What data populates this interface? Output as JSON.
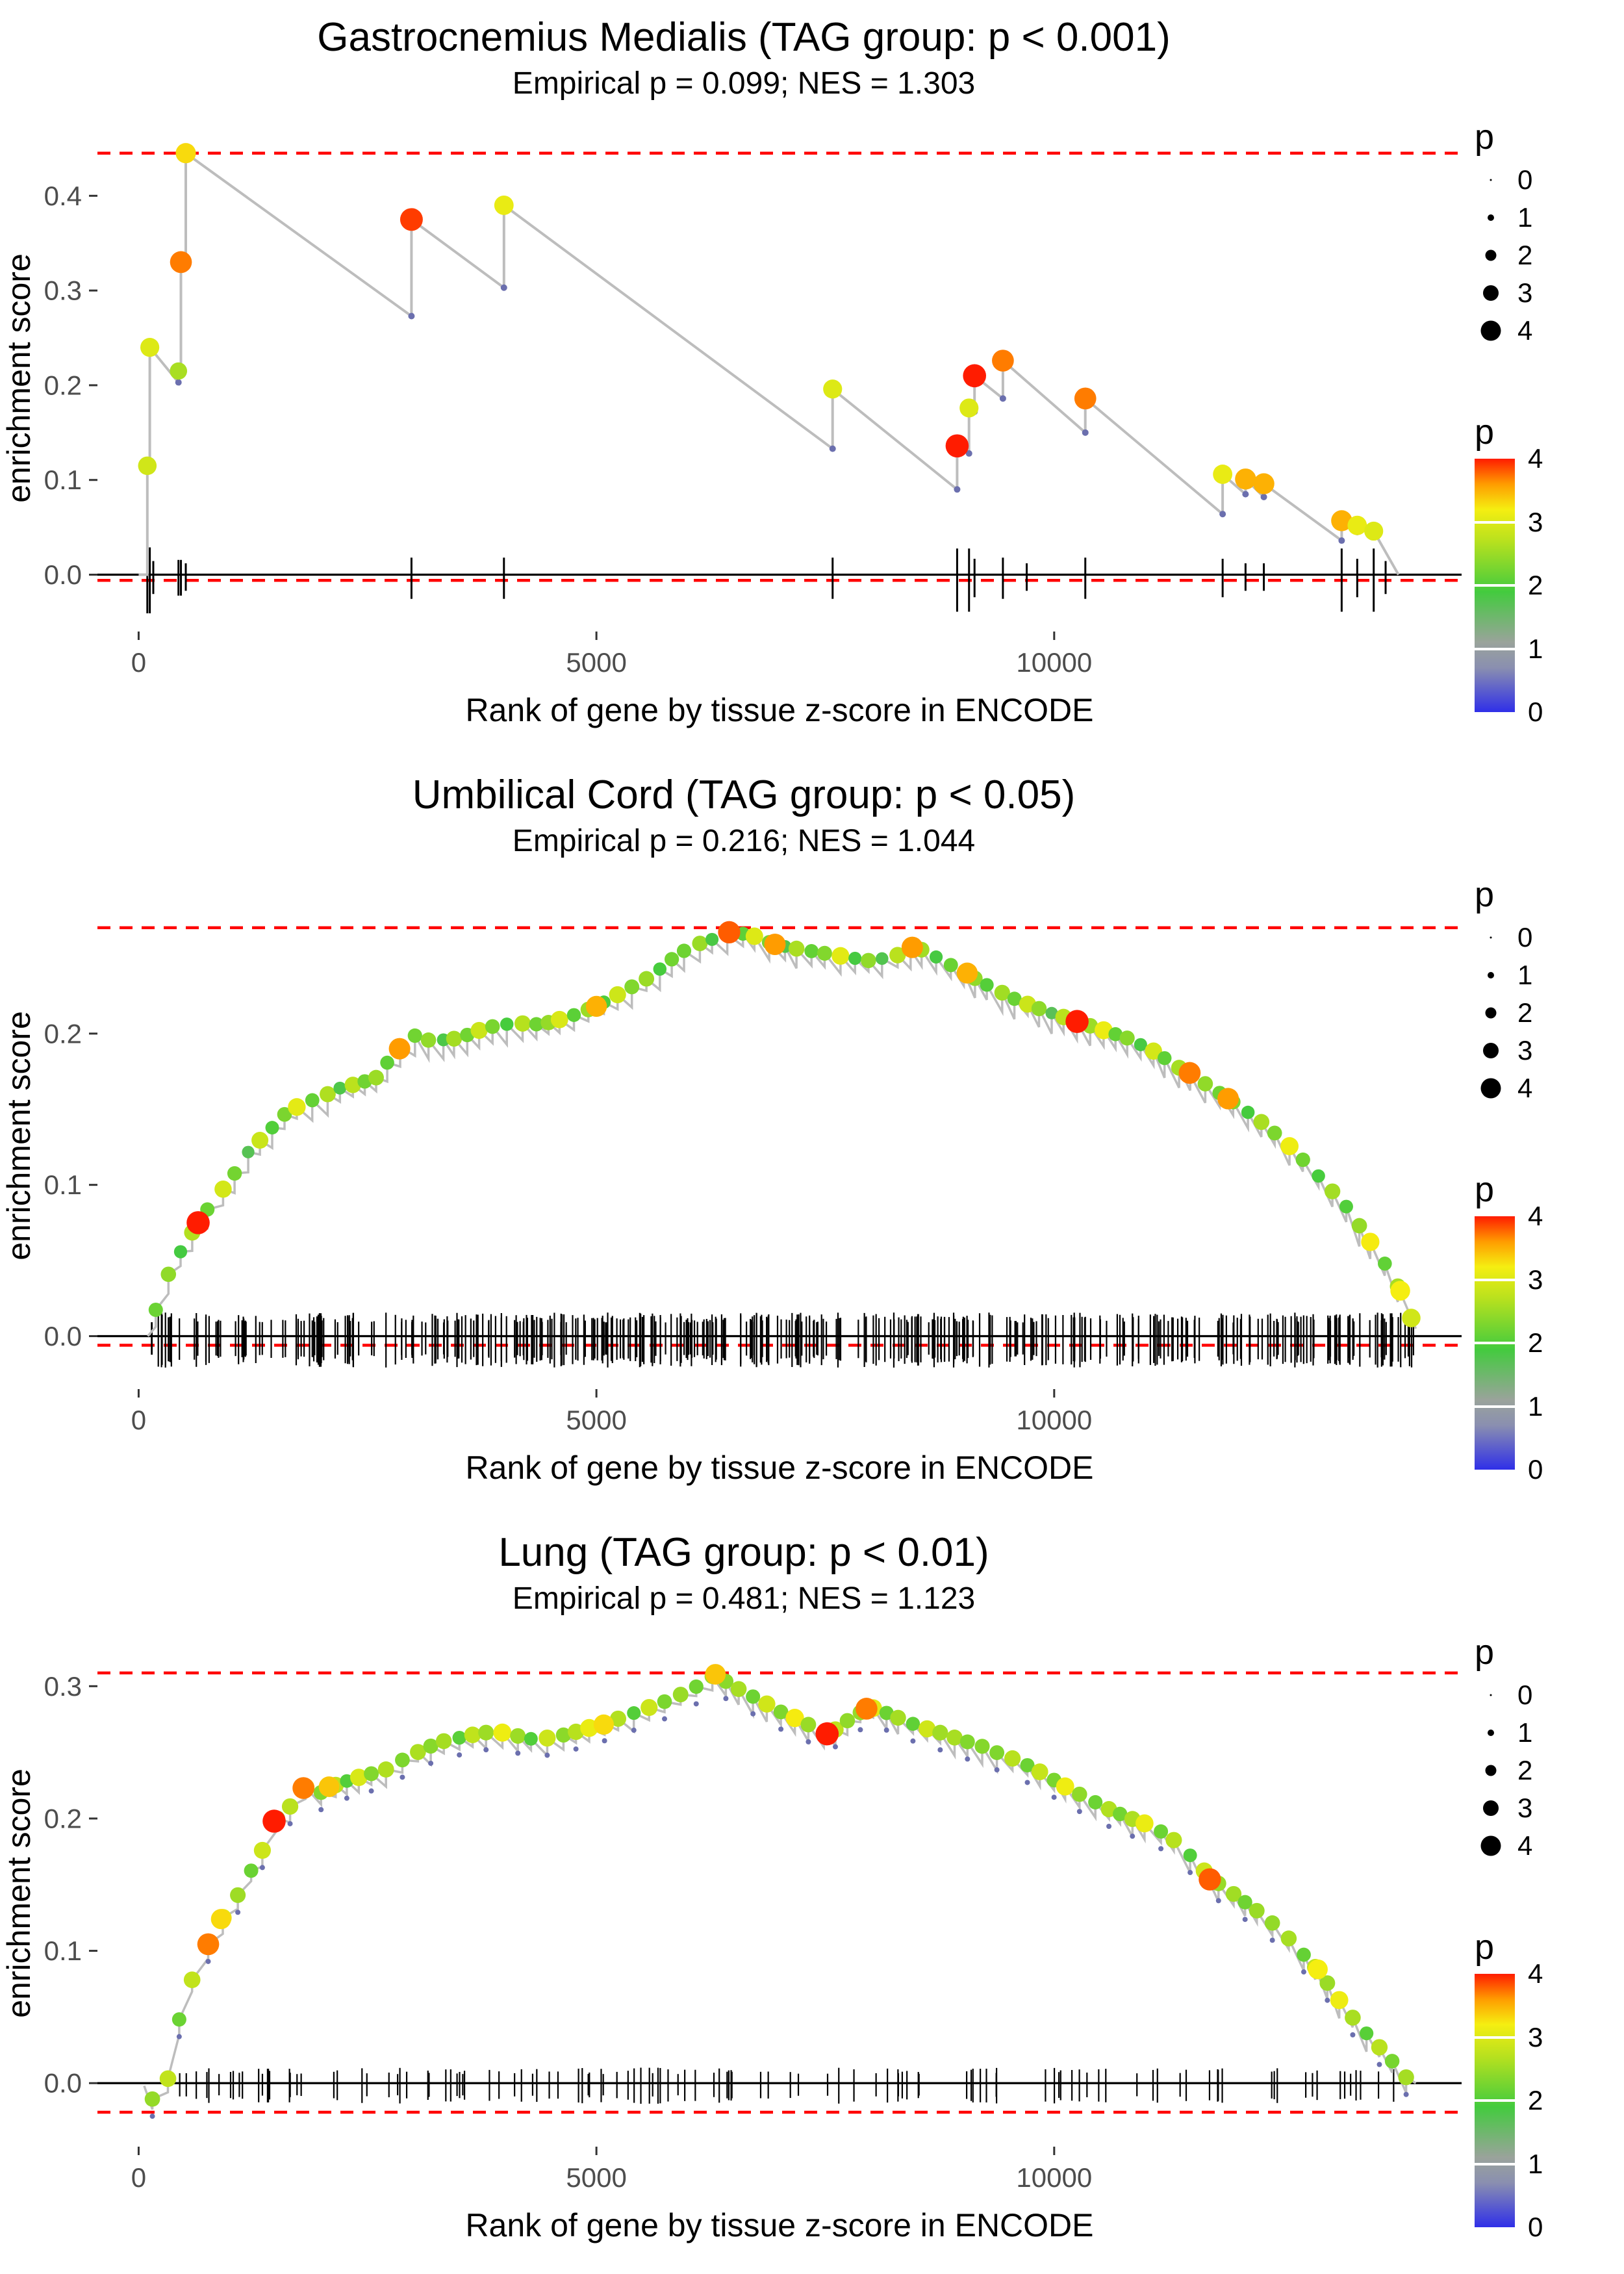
{
  "colors": {
    "dash_red": "#ff0000",
    "curve_gray": "#bdbdbd",
    "axis_text": "#4d4d4d",
    "rug_black": "#000000",
    "base_dot": "#6b6fae",
    "gradient_stops": [
      [
        0,
        "#2f2fe8"
      ],
      [
        0.7,
        "#8a8fb0"
      ],
      [
        1.1,
        "#9aa39b"
      ],
      [
        1.9,
        "#43cb3e"
      ],
      [
        2.7,
        "#b8e11e"
      ],
      [
        3.2,
        "#f5ee11"
      ],
      [
        3.6,
        "#ff9c00"
      ],
      [
        4,
        "#ff1c00"
      ]
    ]
  },
  "legend": {
    "size_title": "p",
    "size_values": [
      0,
      1,
      2,
      3,
      4
    ],
    "color_title": "p",
    "color_ticks": [
      4,
      3,
      2,
      1,
      0
    ],
    "color_range": [
      0,
      4
    ]
  },
  "chart_data": [
    {
      "type": "line",
      "style": "sparse",
      "title": "Gastrocnemius Medialis (TAG group: p < 0.001)",
      "subtitle": "Empirical p = 0.099; NES = 1.303",
      "xlabel": "Rank of gene by tissue z-score in ENCODE",
      "ylabel": "enrichment score",
      "x_ticks": [
        0,
        5000,
        10000
      ],
      "y_ticks": [
        0.0,
        0.1,
        0.2,
        0.3,
        0.4
      ],
      "x_domain": [
        -450,
        14450
      ],
      "y_domain": [
        -0.06,
        0.475
      ],
      "hline_top": 0.445,
      "hline_bottom": -0.006,
      "rug_up": 0.012,
      "rug_down": 0.017,
      "curve": [
        [
          0,
          0
        ],
        [
          95,
          0
        ],
        [
          95,
          0.115
        ],
        [
          122,
          0.113
        ],
        [
          122,
          0.24
        ],
        [
          435,
          0.203
        ],
        [
          435,
          0.215
        ],
        [
          462,
          0.212
        ],
        [
          462,
          0.33
        ],
        [
          515,
          0.326
        ],
        [
          515,
          0.445
        ],
        [
          2980,
          0.273
        ],
        [
          2980,
          0.375
        ],
        [
          3990,
          0.303
        ],
        [
          3990,
          0.39
        ],
        [
          7580,
          0.133
        ],
        [
          7580,
          0.196
        ],
        [
          8940,
          0.09
        ],
        [
          8940,
          0.136
        ],
        [
          9070,
          0.128
        ],
        [
          9070,
          0.176
        ],
        [
          9130,
          0.172
        ],
        [
          9130,
          0.21
        ],
        [
          9440,
          0.186
        ],
        [
          9440,
          0.226
        ],
        [
          10340,
          0.15
        ],
        [
          10340,
          0.186
        ],
        [
          11840,
          0.064
        ],
        [
          11840,
          0.106
        ],
        [
          12090,
          0.085
        ],
        [
          12090,
          0.101
        ],
        [
          12290,
          0.082
        ],
        [
          12290,
          0.096
        ],
        [
          13140,
          0.036
        ],
        [
          13140,
          0.057
        ],
        [
          13310,
          0.045
        ],
        [
          13310,
          0.052
        ],
        [
          13490,
          0.04
        ],
        [
          13490,
          0.046
        ],
        [
          13760,
          0.0
        ]
      ],
      "dots": [
        [
          95,
          0.115,
          2.9
        ],
        [
          122,
          0.24,
          3.0
        ],
        [
          435,
          0.215,
          2.6
        ],
        [
          462,
          0.33,
          3.7
        ],
        [
          515,
          0.445,
          3.3
        ],
        [
          2980,
          0.375,
          3.9
        ],
        [
          3990,
          0.39,
          3.1
        ],
        [
          7580,
          0.196,
          3.0
        ],
        [
          8940,
          0.136,
          4.0
        ],
        [
          9070,
          0.176,
          3.0
        ],
        [
          9130,
          0.21,
          4.0
        ],
        [
          9440,
          0.226,
          3.7
        ],
        [
          10340,
          0.186,
          3.7
        ],
        [
          11840,
          0.106,
          3.1
        ],
        [
          12090,
          0.101,
          3.5
        ],
        [
          12290,
          0.096,
          3.5
        ],
        [
          13140,
          0.057,
          3.5
        ],
        [
          13310,
          0.052,
          3.1
        ],
        [
          13490,
          0.046,
          3.0
        ]
      ],
      "base_dots": [
        [
          435,
          0.203
        ],
        [
          2980,
          0.273
        ],
        [
          3990,
          0.303
        ],
        [
          7580,
          0.133
        ],
        [
          8940,
          0.09
        ],
        [
          9070,
          0.128
        ],
        [
          9130,
          0.172
        ],
        [
          9440,
          0.186
        ],
        [
          10340,
          0.15
        ],
        [
          11840,
          0.064
        ],
        [
          12090,
          0.085
        ],
        [
          12290,
          0.082
        ],
        [
          13140,
          0.036
        ],
        [
          13310,
          0.045
        ],
        [
          13490,
          0.04
        ]
      ],
      "rug": [
        [
          95,
          2.4
        ],
        [
          122,
          2.4
        ],
        [
          160,
          1.2
        ],
        [
          435,
          1.3
        ],
        [
          462,
          1.3
        ],
        [
          515,
          1.0
        ],
        [
          2980,
          1.5
        ],
        [
          3990,
          1.5
        ],
        [
          7580,
          1.5
        ],
        [
          8940,
          2.3
        ],
        [
          9070,
          2.3
        ],
        [
          9130,
          1.4
        ],
        [
          9440,
          1.5
        ],
        [
          9700,
          1.0
        ],
        [
          10340,
          1.5
        ],
        [
          11840,
          1.4
        ],
        [
          12090,
          1.0
        ],
        [
          12290,
          1.0
        ],
        [
          13140,
          2.3
        ],
        [
          13310,
          1.4
        ],
        [
          13490,
          2.3
        ],
        [
          13620,
          1.2
        ]
      ]
    },
    {
      "type": "line",
      "style": "dense",
      "title": "Umbilical Cord (TAG group: p < 0.05)",
      "subtitle": "Empirical p = 0.216; NES = 1.044",
      "xlabel": "Rank of gene by tissue z-score in ENCODE",
      "ylabel": "enrichment score",
      "x_ticks": [
        0,
        5000,
        10000
      ],
      "y_ticks": [
        0.0,
        0.1,
        0.2
      ],
      "x_domain": [
        -450,
        14450
      ],
      "y_domain": [
        -0.035,
        0.3
      ],
      "hline_top": 0.27,
      "hline_bottom": -0.006,
      "rug_up": 0.012,
      "rug_down": 0.016,
      "seed": 20,
      "dot_spacing": 145,
      "show_base_dots": false,
      "p_pattern": [
        2.1,
        2.4,
        1.9,
        2.6,
        2.2,
        3.0,
        2.3,
        1.8,
        2.7,
        2.1,
        2.4,
        3.1,
        2.0,
        2.5,
        1.9,
        2.8,
        2.2,
        2.6,
        2.0,
        2.3
      ],
      "anchors": [
        [
          100,
          0.0
        ],
        [
          200,
          0.02
        ],
        [
          350,
          0.045
        ],
        [
          500,
          0.06
        ],
        [
          650,
          0.075
        ],
        [
          800,
          0.088
        ],
        [
          1000,
          0.103
        ],
        [
          1200,
          0.122
        ],
        [
          1400,
          0.134
        ],
        [
          1600,
          0.147
        ],
        [
          1800,
          0.154
        ],
        [
          2000,
          0.158
        ],
        [
          2200,
          0.164
        ],
        [
          2400,
          0.167
        ],
        [
          2600,
          0.171
        ],
        [
          2800,
          0.188
        ],
        [
          3000,
          0.199
        ],
        [
          3200,
          0.195
        ],
        [
          3500,
          0.197
        ],
        [
          3800,
          0.204
        ],
        [
          4100,
          0.207
        ],
        [
          4400,
          0.206
        ],
        [
          4700,
          0.211
        ],
        [
          5000,
          0.218
        ],
        [
          5300,
          0.228
        ],
        [
          5600,
          0.238
        ],
        [
          5900,
          0.253
        ],
        [
          6100,
          0.259
        ],
        [
          6300,
          0.263
        ],
        [
          6500,
          0.267
        ],
        [
          6700,
          0.265
        ],
        [
          6900,
          0.26
        ],
        [
          7100,
          0.257
        ],
        [
          7400,
          0.254
        ],
        [
          7700,
          0.251
        ],
        [
          8000,
          0.248
        ],
        [
          8300,
          0.252
        ],
        [
          8500,
          0.257
        ],
        [
          8700,
          0.251
        ],
        [
          9000,
          0.241
        ],
        [
          9300,
          0.231
        ],
        [
          9600,
          0.222
        ],
        [
          9900,
          0.215
        ],
        [
          10200,
          0.209
        ],
        [
          10500,
          0.203
        ],
        [
          10800,
          0.197
        ],
        [
          11100,
          0.188
        ],
        [
          11400,
          0.176
        ],
        [
          11700,
          0.165
        ],
        [
          12000,
          0.153
        ],
        [
          12300,
          0.14
        ],
        [
          12600,
          0.124
        ],
        [
          12900,
          0.105
        ],
        [
          13200,
          0.085
        ],
        [
          13500,
          0.058
        ],
        [
          13700,
          0.04
        ],
        [
          13850,
          0.02
        ],
        [
          13950,
          0.005
        ]
      ],
      "special_dots": [
        [
          650,
          0.075,
          4.0
        ],
        [
          2850,
          0.19,
          3.6
        ],
        [
          5000,
          0.218,
          3.5
        ],
        [
          6450,
          0.267,
          3.8
        ],
        [
          6950,
          0.259,
          3.6
        ],
        [
          8450,
          0.257,
          3.6
        ],
        [
          9050,
          0.24,
          3.5
        ],
        [
          10250,
          0.208,
          4.0
        ],
        [
          11480,
          0.174,
          3.7
        ],
        [
          11900,
          0.157,
          3.6
        ],
        [
          13780,
          0.03,
          3.2
        ],
        [
          13900,
          0.012,
          2.9
        ]
      ],
      "rug": {
        "count": 420,
        "min": 120,
        "max": 13950,
        "seed": 77
      }
    },
    {
      "type": "line",
      "style": "dense",
      "title": "Lung (TAG group: p < 0.01)",
      "subtitle": "Empirical p = 0.481; NES = 1.123",
      "xlabel": "Rank of gene by tissue z-score in ENCODE",
      "ylabel": "enrichment score",
      "x_ticks": [
        0,
        5000,
        10000
      ],
      "y_ticks": [
        0.0,
        0.1,
        0.2,
        0.3
      ],
      "x_domain": [
        -450,
        14450
      ],
      "y_domain": [
        -0.048,
        0.335
      ],
      "hline_top": 0.31,
      "hline_bottom": -0.022,
      "rug_up": 0.009,
      "rug_down": 0.012,
      "seed": 31,
      "dot_spacing": 150,
      "show_base_dots": true,
      "p_pattern": [
        2.4,
        2.7,
        2.2,
        2.9,
        2.4,
        3.1,
        2.5,
        2.1,
        2.8,
        2.3,
        2.6,
        3.0,
        2.2,
        2.7,
        2.1,
        2.9,
        2.4,
        2.6,
        2.2,
        2.5
      ],
      "anchors": [
        [
          60,
          -0.002
        ],
        [
          150,
          -0.012
        ],
        [
          230,
          -0.022
        ],
        [
          300,
          -0.005
        ],
        [
          360,
          0.02
        ],
        [
          420,
          0.042
        ],
        [
          480,
          0.058
        ],
        [
          550,
          0.072
        ],
        [
          650,
          0.09
        ],
        [
          760,
          0.105
        ],
        [
          880,
          0.122
        ],
        [
          1000,
          0.131
        ],
        [
          1120,
          0.147
        ],
        [
          1240,
          0.162
        ],
        [
          1360,
          0.177
        ],
        [
          1480,
          0.198
        ],
        [
          1600,
          0.205
        ],
        [
          1720,
          0.214
        ],
        [
          1840,
          0.225
        ],
        [
          1950,
          0.218
        ],
        [
          2100,
          0.224
        ],
        [
          2300,
          0.229
        ],
        [
          2500,
          0.233
        ],
        [
          2700,
          0.237
        ],
        [
          2900,
          0.245
        ],
        [
          3100,
          0.252
        ],
        [
          3300,
          0.258
        ],
        [
          3500,
          0.261
        ],
        [
          3700,
          0.264
        ],
        [
          3900,
          0.266
        ],
        [
          4100,
          0.263
        ],
        [
          4300,
          0.26
        ],
        [
          4500,
          0.261
        ],
        [
          4700,
          0.264
        ],
        [
          4900,
          0.268
        ],
        [
          5100,
          0.272
        ],
        [
          5300,
          0.277
        ],
        [
          5500,
          0.282
        ],
        [
          5700,
          0.287
        ],
        [
          5900,
          0.293
        ],
        [
          6100,
          0.3
        ],
        [
          6300,
          0.309
        ],
        [
          6450,
          0.302
        ],
        [
          6600,
          0.296
        ],
        [
          6800,
          0.289
        ],
        [
          7000,
          0.281
        ],
        [
          7200,
          0.275
        ],
        [
          7400,
          0.268
        ],
        [
          7550,
          0.264
        ],
        [
          7700,
          0.272
        ],
        [
          7850,
          0.279
        ],
        [
          8000,
          0.284
        ],
        [
          8200,
          0.279
        ],
        [
          8400,
          0.273
        ],
        [
          8600,
          0.268
        ],
        [
          8800,
          0.264
        ],
        [
          9000,
          0.259
        ],
        [
          9200,
          0.255
        ],
        [
          9400,
          0.249
        ],
        [
          9600,
          0.244
        ],
        [
          9800,
          0.237
        ],
        [
          10000,
          0.229
        ],
        [
          10200,
          0.221
        ],
        [
          10400,
          0.214
        ],
        [
          10600,
          0.207
        ],
        [
          10800,
          0.201
        ],
        [
          11000,
          0.196
        ],
        [
          11200,
          0.189
        ],
        [
          11400,
          0.179
        ],
        [
          11600,
          0.163
        ],
        [
          11750,
          0.153
        ],
        [
          11900,
          0.146
        ],
        [
          12100,
          0.136
        ],
        [
          12300,
          0.126
        ],
        [
          12500,
          0.114
        ],
        [
          12700,
          0.099
        ],
        [
          12900,
          0.084
        ],
        [
          13100,
          0.064
        ],
        [
          13300,
          0.046
        ],
        [
          13500,
          0.031
        ],
        [
          13700,
          0.016
        ],
        [
          13850,
          0.004
        ],
        [
          13950,
          0.0
        ]
      ],
      "special_dots": [
        [
          760,
          0.105,
          3.7
        ],
        [
          900,
          0.124,
          3.3
        ],
        [
          1480,
          0.198,
          4.0
        ],
        [
          1800,
          0.223,
          3.7
        ],
        [
          2080,
          0.224,
          3.4
        ],
        [
          5080,
          0.271,
          3.3
        ],
        [
          6300,
          0.309,
          3.4
        ],
        [
          7520,
          0.264,
          4.0
        ],
        [
          7950,
          0.283,
          3.7
        ],
        [
          11700,
          0.154,
          3.8
        ],
        [
          12880,
          0.086,
          3.2
        ]
      ],
      "rug": {
        "count": 120,
        "min": 250,
        "max": 13900,
        "seed": 55
      }
    }
  ]
}
